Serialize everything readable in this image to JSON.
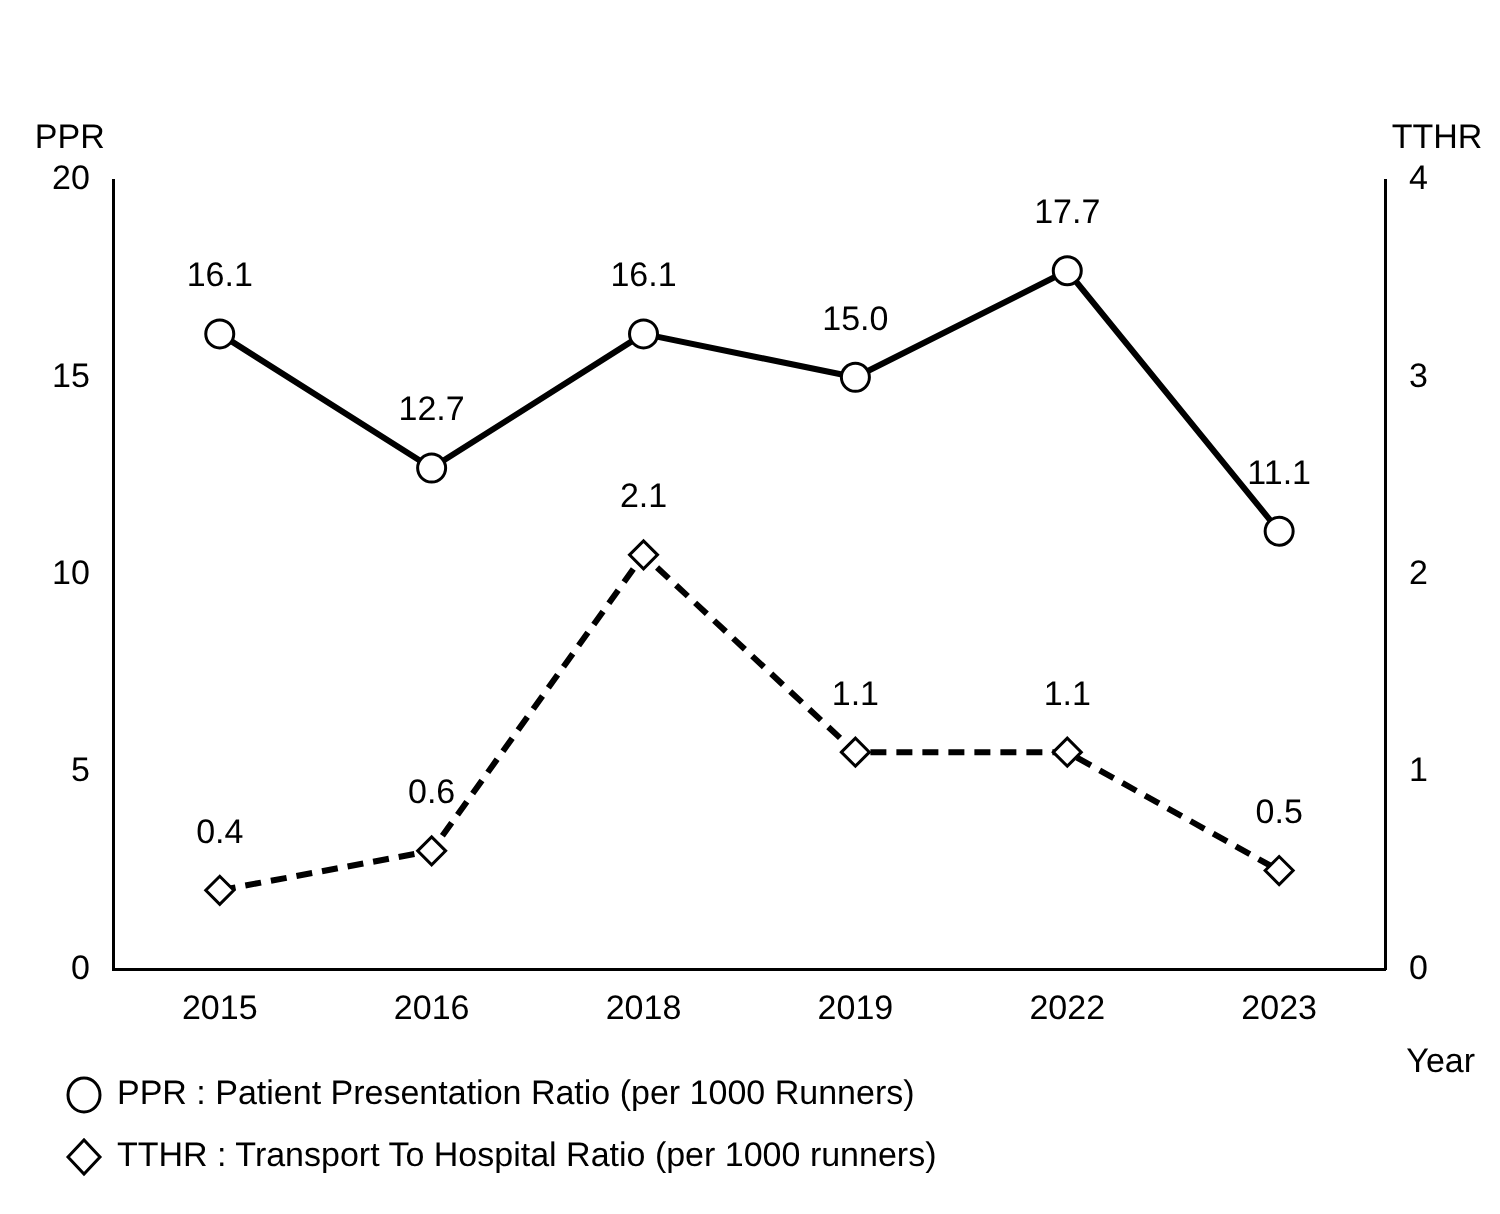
{
  "chart_data": {
    "type": "line",
    "xlabel": "Year",
    "ylabel": "PPR",
    "y2label": "TTHR",
    "categories": [
      "2015",
      "2016",
      "2018",
      "2019",
      "2022",
      "2023"
    ],
    "series": [
      {
        "name": "PPR : Patient Presentation Ratio (per 1000 Runners)",
        "color": "#000000",
        "values": [
          16.1,
          12.7,
          16.1,
          15.0,
          17.7,
          11.1
        ],
        "value_labels": [
          "16.1",
          "12.7",
          "16.1",
          "15.0",
          "17.7",
          "11.1"
        ],
        "marker": "circle",
        "line_style": "solid",
        "axis": "y"
      },
      {
        "name": "TTHR : Transport To Hospital Ratio (per 1000 runners)",
        "color": "#000000",
        "values": [
          0.4,
          0.6,
          2.1,
          1.1,
          1.1,
          0.5
        ],
        "value_labels": [
          "0.4",
          "0.6",
          "2.1",
          "1.1",
          "1.1",
          "0.5"
        ],
        "marker": "diamond",
        "line_style": "dashed",
        "axis": "y2"
      }
    ],
    "ylim": [
      0,
      20
    ],
    "yticks": [
      0,
      5,
      10,
      15,
      20
    ],
    "y2lim": [
      0,
      4
    ],
    "y2ticks": [
      0,
      1,
      2,
      3,
      4
    ],
    "grid": false,
    "legend": "bottom"
  }
}
